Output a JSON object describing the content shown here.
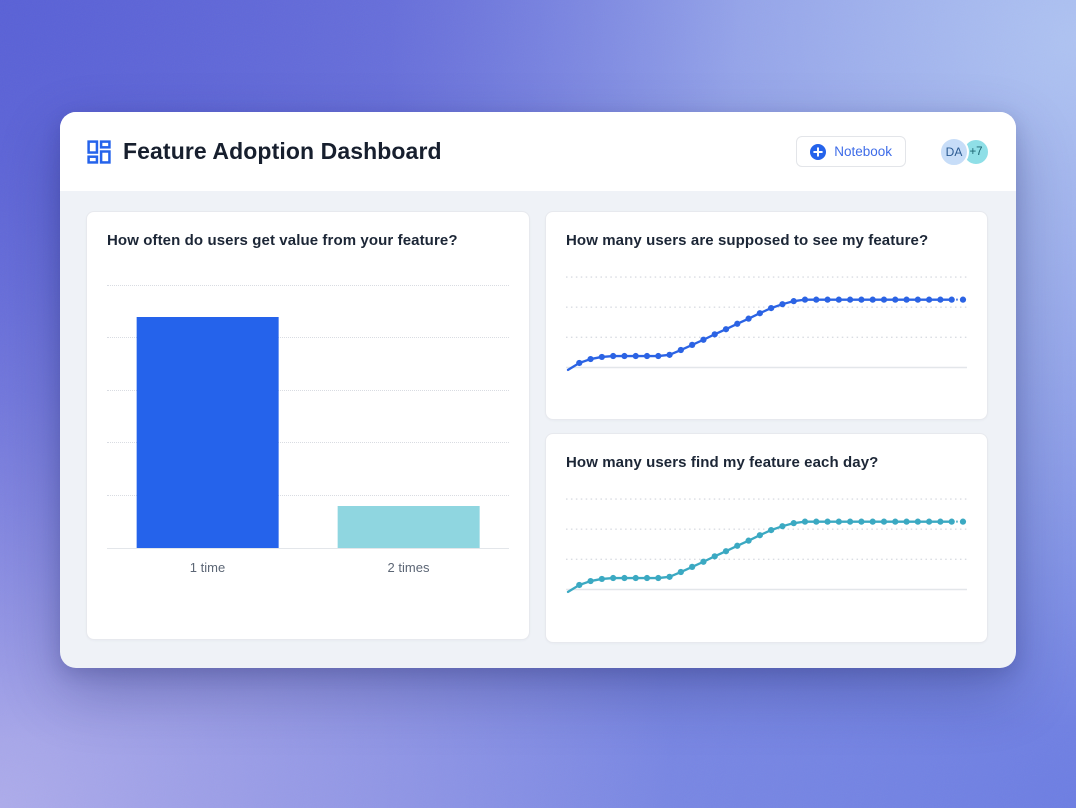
{
  "header": {
    "title": "Feature Adoption Dashboard",
    "notebook_button_label": "Notebook",
    "avatars": {
      "initials": "DA",
      "overflow": "+7"
    }
  },
  "colors": {
    "accent_blue": "#2563eb",
    "light_cyan": "#8fd6e0",
    "teal": "#3ba9c2",
    "grid": "#d9dce2",
    "baseline": "#e3e6ea"
  },
  "chart_data": [
    {
      "type": "bar",
      "title": "How often do users get value from your feature?",
      "categories": [
        "1 time",
        "2 times"
      ],
      "values": [
        88,
        16
      ],
      "bar_colors": [
        "#2563eb",
        "#8fd6e0"
      ],
      "ylim": [
        0,
        100
      ],
      "grid_step": 20,
      "xlabel": "",
      "ylabel": "",
      "legend": "none",
      "grid": "dotted-horizontal"
    },
    {
      "type": "line",
      "title": "How many users are supposed to see my feature?",
      "color": "#2b63e4",
      "x": "time (days)",
      "values": [
        -0.08,
        0.15,
        0.28,
        0.35,
        0.38,
        0.38,
        0.38,
        0.38,
        0.38,
        0.42,
        0.58,
        0.75,
        0.92,
        1.1,
        1.27,
        1.45,
        1.62,
        1.8,
        1.97,
        2.1,
        2.2,
        2.25,
        2.25,
        2.25,
        2.25,
        2.25,
        2.25,
        2.25,
        2.25,
        2.25,
        2.25,
        2.25,
        2.25,
        2.25,
        2.25,
        2.25
      ],
      "ylim": [
        0,
        3
      ],
      "grid_lines": [
        1,
        2,
        3
      ],
      "markers": "dots",
      "last_point_detached": true,
      "legend": "none",
      "grid": "dotted-horizontal"
    },
    {
      "type": "line",
      "title": "How many users find my feature each day?",
      "color": "#3ba9c2",
      "x": "time (days)",
      "values": [
        -0.08,
        0.15,
        0.28,
        0.35,
        0.38,
        0.38,
        0.38,
        0.38,
        0.38,
        0.42,
        0.58,
        0.75,
        0.92,
        1.1,
        1.27,
        1.45,
        1.62,
        1.8,
        1.97,
        2.1,
        2.2,
        2.25,
        2.25,
        2.25,
        2.25,
        2.25,
        2.25,
        2.25,
        2.25,
        2.25,
        2.25,
        2.25,
        2.25,
        2.25,
        2.25,
        2.25
      ],
      "ylim": [
        0,
        3
      ],
      "grid_lines": [
        1,
        2,
        3
      ],
      "markers": "dots",
      "last_point_detached": true,
      "legend": "none",
      "grid": "dotted-horizontal"
    }
  ]
}
